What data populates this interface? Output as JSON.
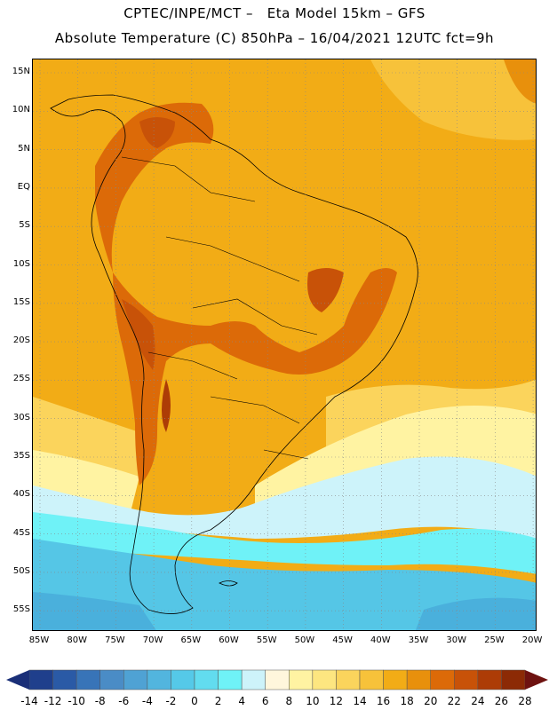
{
  "header": {
    "title_line1": "CPTEC/INPE/MCT –   Eta Model 15km – GFS",
    "title_line2": "Absolute Temperature (C) 850hPa – 16/04/2021 12UTC fct=9h"
  },
  "map": {
    "lat_labels": [
      "15N",
      "10N",
      "5N",
      "EQ",
      "5S",
      "10S",
      "15S",
      "20S",
      "25S",
      "30S",
      "35S",
      "40S",
      "45S",
      "50S",
      "55S"
    ],
    "lon_labels": [
      "85W",
      "80W",
      "75W",
      "70W",
      "65W",
      "60W",
      "55W",
      "50W",
      "45W",
      "40W",
      "35W",
      "30W",
      "25W",
      "20W"
    ]
  },
  "colorbar": {
    "labels": [
      "-14",
      "-12",
      "-10",
      "-8",
      "-6",
      "-4",
      "-2",
      "0",
      "2",
      "4",
      "6",
      "8",
      "10",
      "12",
      "14",
      "16",
      "18",
      "20",
      "22",
      "24",
      "26",
      "28"
    ],
    "colors": [
      "#1f3f8c",
      "#2a5aa6",
      "#3874b8",
      "#4a8cc6",
      "#4fa2d4",
      "#52b5de",
      "#55c9e8",
      "#62dcef",
      "#6ff2f7",
      "#cdf3fa",
      "#fff6dc",
      "#fff3a2",
      "#fde680",
      "#fbd45c",
      "#f7c23a",
      "#f2ac16",
      "#e8900c",
      "#dc6a08",
      "#c85208",
      "#ad3c06",
      "#8c2a05"
    ],
    "end_low_color": "#1a2f78",
    "end_high_color": "#6e1210"
  },
  "palette": {
    "sea_cold_deep": "#4ab0dc",
    "sea_cold": "#55c6e6",
    "sea_cool": "#6ff2f7",
    "sea_pale": "#cdf3fa",
    "warm_pale": "#fff3a2",
    "warm_yellow": "#fbd45c",
    "orange_light": "#f7c23a",
    "orange": "#f2ac16",
    "orange_dark": "#e8900c",
    "hot": "#dc6a08",
    "hotter": "#c85208",
    "hottest": "#ad3c06"
  }
}
